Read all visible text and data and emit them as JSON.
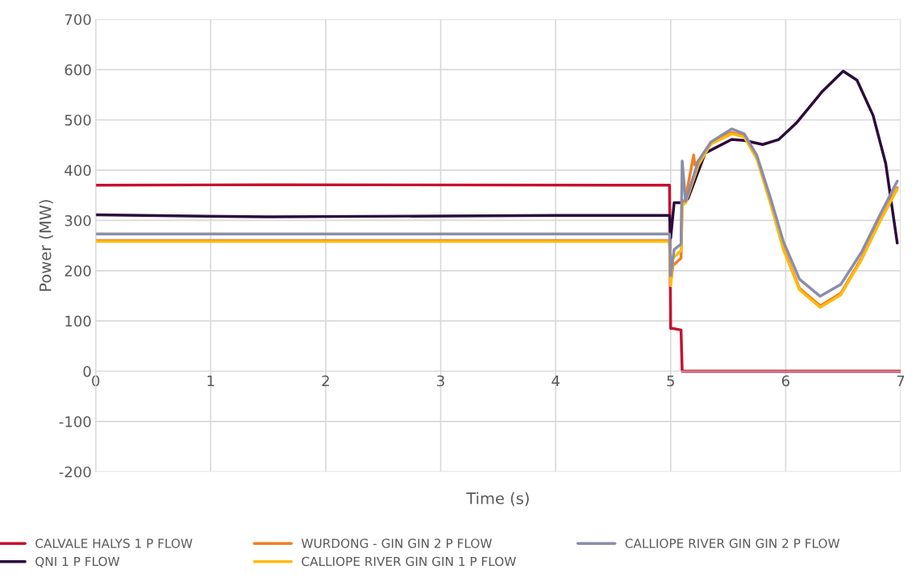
{
  "chart_data": {
    "type": "line",
    "xlabel": "Time (s)",
    "ylabel": "Power (MW)",
    "xlim": [
      0,
      7
    ],
    "xticks": [
      0,
      1,
      2,
      3,
      4,
      5,
      6,
      7
    ],
    "ylim": [
      -200,
      700
    ],
    "yticks": [
      -200,
      -100,
      0,
      100,
      200,
      300,
      400,
      500,
      600,
      700
    ],
    "grid": true,
    "legend": "bottom",
    "marker": "none",
    "line_style": "solid",
    "series": [
      {
        "name": "CALVALE HALYS 1 P FLOW",
        "color": "#c8102e",
        "x": [
          0,
          1.5,
          4.99,
          5.0,
          5.02,
          5.09,
          5.1,
          7
        ],
        "values": [
          370,
          371,
          370,
          85,
          85,
          82,
          0,
          0
        ]
      },
      {
        "name": "QNI 1 P FLOW",
        "color": "#2b0a3d",
        "x": [
          0,
          1.5,
          4,
          4.99,
          5.0,
          5.03,
          5.1,
          5.15,
          5.3,
          5.53,
          5.64,
          5.8,
          5.94,
          6.09,
          6.32,
          6.5,
          6.62,
          6.76,
          6.87,
          6.97
        ],
        "values": [
          311,
          307,
          310,
          310,
          265,
          335,
          335,
          343,
          434,
          461,
          459,
          451,
          461,
          493,
          557,
          597,
          579,
          509,
          413,
          255
        ]
      },
      {
        "name": "WURDONG - GIN GIN 2 P FLOW",
        "color": "#f07f26",
        "x": [
          0,
          4.99,
          5.0,
          5.02,
          5.09,
          5.1,
          5.13,
          5.2,
          5.21,
          5.24,
          5.35,
          5.53,
          5.64,
          5.75,
          5.87,
          5.98,
          6.12,
          6.3,
          6.48,
          6.66,
          6.82,
          6.97
        ],
        "values": [
          260,
          260,
          175,
          210,
          225,
          330,
          345,
          430,
          410,
          418,
          455,
          475,
          468,
          425,
          335,
          245,
          165,
          130,
          155,
          225,
          300,
          365
        ]
      },
      {
        "name": "CALLIOPE RIVER GIN GIN 1 P FLOW",
        "color": "#fdbb10",
        "x": [
          0,
          4.99,
          5.0,
          5.02,
          5.09,
          5.1,
          5.13,
          5.24,
          5.35,
          5.53,
          5.64,
          5.75,
          5.87,
          5.98,
          6.12,
          6.3,
          6.48,
          6.66,
          6.82,
          6.97
        ],
        "values": [
          258,
          258,
          170,
          225,
          240,
          330,
          335,
          410,
          452,
          472,
          466,
          422,
          332,
          242,
          162,
          127,
          152,
          222,
          298,
          362
        ]
      },
      {
        "name": "CALLIOPE RIVER GIN GIN 2 P FLOW",
        "color": "#8a8ea8",
        "x": [
          0,
          4.99,
          5.0,
          5.03,
          5.09,
          5.1,
          5.13,
          5.24,
          5.35,
          5.53,
          5.64,
          5.75,
          5.87,
          5.98,
          6.12,
          6.3,
          6.48,
          6.66,
          6.82,
          6.97
        ],
        "values": [
          273,
          273,
          190,
          242,
          253,
          418,
          338,
          418,
          456,
          482,
          472,
          429,
          343,
          258,
          183,
          149,
          173,
          237,
          311,
          378
        ]
      }
    ]
  }
}
